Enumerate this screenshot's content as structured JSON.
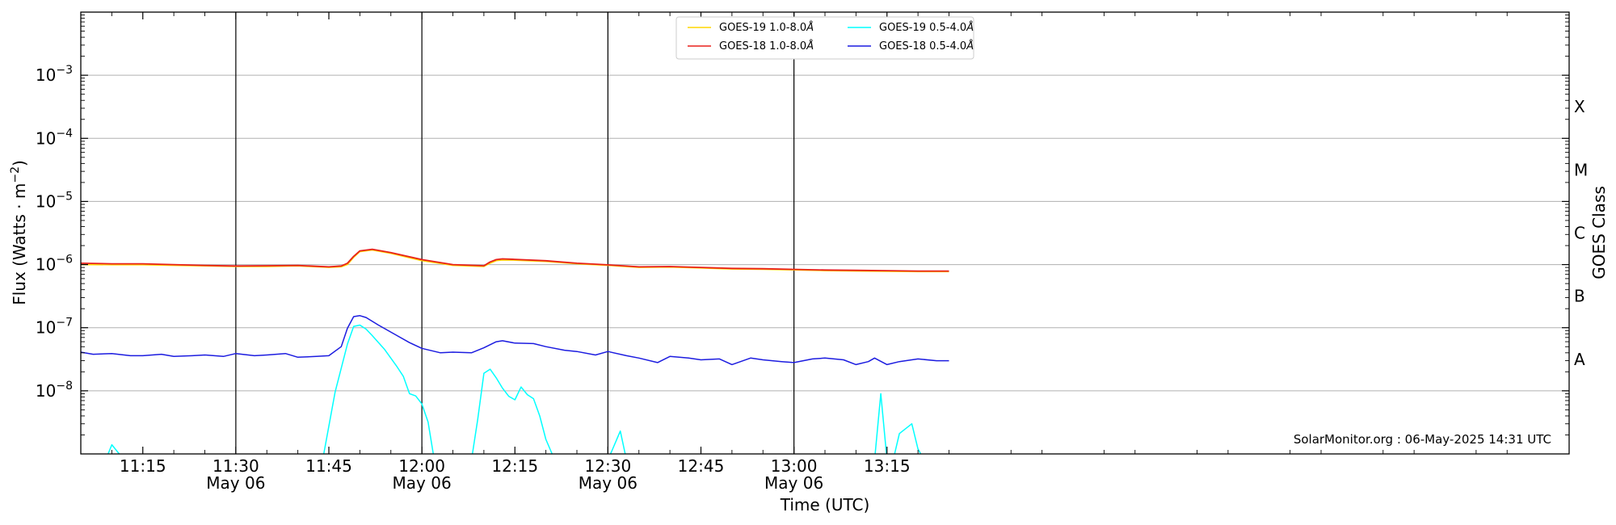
{
  "chart_data": {
    "type": "line",
    "xlabel": "Time (UTC)",
    "ylabel_main": "Flux (Watts · m",
    "ylabel_sup": "−2",
    "ylabel_close": ")",
    "right_label": "GOES Class",
    "watermark": "SolarMonitor.org : 06-May-2025 14:31 UTC",
    "scale": "log",
    "ylim": [
      1e-09,
      0.01
    ],
    "xlim_minutes": [
      65,
      305
    ],
    "x_origin_label": "10:00 UTC",
    "grid": "horizontal at decades",
    "legend_position": "top-center",
    "y_ticks": [
      {
        "value": 1e-08,
        "exp": "−8"
      },
      {
        "value": 1e-07,
        "exp": "−7"
      },
      {
        "value": 1e-06,
        "exp": "−6"
      },
      {
        "value": 1e-05,
        "exp": "−5"
      },
      {
        "value": 0.0001,
        "exp": "−4"
      },
      {
        "value": 0.001,
        "exp": "−3"
      }
    ],
    "x_ticks": [
      {
        "minute": 75,
        "label": "11:15",
        "sublabel": ""
      },
      {
        "minute": 90,
        "label": "11:30",
        "sublabel": "May 06"
      },
      {
        "minute": 105,
        "label": "11:45",
        "sublabel": ""
      },
      {
        "minute": 120,
        "label": "12:00",
        "sublabel": "May 06"
      },
      {
        "minute": 135,
        "label": "12:15",
        "sublabel": ""
      },
      {
        "minute": 150,
        "label": "12:30",
        "sublabel": "May 06"
      },
      {
        "minute": 165,
        "label": "12:45",
        "sublabel": ""
      },
      {
        "minute": 180,
        "label": "13:00",
        "sublabel": "May 06"
      },
      {
        "minute": 195,
        "label": "13:15",
        "sublabel": ""
      }
    ],
    "vlines_minutes": [
      90,
      120,
      150,
      180
    ],
    "goes_classes": [
      {
        "label": "X",
        "value": 0.000316
      },
      {
        "label": "M",
        "value": 3.16e-05
      },
      {
        "label": "C",
        "value": 3.16e-06
      },
      {
        "label": "B",
        "value": 3.16e-07
      },
      {
        "label": "A",
        "value": 3.16e-08
      }
    ],
    "series": [
      {
        "name": "GOES-19 1.0-8.0",
        "color": "#ffd700",
        "x": [
          65,
          70,
          75,
          80,
          85,
          90,
          95,
          100,
          103,
          105,
          107,
          108,
          109,
          110,
          112,
          115,
          120,
          125,
          130,
          131,
          132,
          133,
          135,
          140,
          145,
          150,
          155,
          160,
          165,
          170,
          175,
          180,
          185,
          190,
          195,
          200,
          205
        ],
        "y": [
          1e-06,
          9.9e-07,
          9.9e-07,
          9.7e-07,
          9.5e-07,
          9.3e-07,
          9.3e-07,
          9.5e-07,
          9.2e-07,
          9e-07,
          9.2e-07,
          1e-06,
          1.3e-06,
          1.6e-06,
          1.7e-06,
          1.5e-06,
          1.15e-06,
          9.7e-07,
          9.3e-07,
          1.05e-06,
          1.15e-06,
          1.18e-06,
          1.17e-06,
          1.12e-06,
          1.03e-06,
          9.7e-07,
          9e-07,
          9.1e-07,
          8.8e-07,
          8.5e-07,
          8.4e-07,
          8.2e-07,
          8e-07,
          7.9e-07,
          7.8e-07,
          7.7e-07,
          7.7e-07
        ]
      },
      {
        "name": "GOES-18 1.0-8.0",
        "color": "#e8211b",
        "x": [
          65,
          70,
          75,
          80,
          85,
          90,
          95,
          100,
          103,
          105,
          107,
          108,
          109,
          110,
          112,
          115,
          120,
          125,
          130,
          131,
          132,
          133,
          135,
          140,
          145,
          150,
          155,
          160,
          165,
          170,
          175,
          180,
          185,
          190,
          195,
          200,
          205
        ],
        "y": [
          1.05e-06,
          1.03e-06,
          1.03e-06,
          1e-06,
          9.7e-07,
          9.5e-07,
          9.6e-07,
          9.7e-07,
          9.4e-07,
          9.2e-07,
          9.5e-07,
          1.05e-06,
          1.35e-06,
          1.65e-06,
          1.75e-06,
          1.55e-06,
          1.2e-06,
          1e-06,
          9.6e-07,
          1.1e-06,
          1.2e-06,
          1.23e-06,
          1.21e-06,
          1.15e-06,
          1.05e-06,
          9.9e-07,
          9.2e-07,
          9.3e-07,
          9e-07,
          8.7e-07,
          8.6e-07,
          8.4e-07,
          8.2e-07,
          8.1e-07,
          8e-07,
          7.9e-07,
          7.9e-07
        ]
      },
      {
        "name": "GOES-19 0.5-4.0",
        "color": "#00ffff",
        "x": [
          65,
          69,
          70,
          72,
          73,
          104,
          106,
          108,
          109,
          110,
          111,
          112,
          114,
          116,
          117,
          118,
          119,
          120,
          121,
          122,
          124,
          128,
          129,
          130,
          131,
          132,
          133,
          134,
          135,
          136,
          137,
          138,
          139,
          140,
          141,
          142,
          150,
          152,
          153,
          154,
          193,
          194,
          195,
          196,
          197,
          199,
          200,
          201,
          202,
          205
        ],
        "y": [
          8e-10,
          8e-10,
          1.4e-09,
          8e-10,
          8e-10,
          8e-10,
          9.5e-09,
          5.5e-08,
          1.05e-07,
          1.1e-07,
          9.5e-08,
          7.5e-08,
          4.5e-08,
          2.4e-08,
          1.7e-08,
          9e-09,
          8.3e-09,
          6.2e-09,
          3.2e-09,
          8e-10,
          8e-10,
          8e-10,
          3.5e-09,
          1.9e-08,
          2.2e-08,
          1.6e-08,
          1.1e-08,
          8.2e-09,
          7.2e-09,
          1.15e-08,
          8.7e-09,
          7.5e-09,
          4e-09,
          1.7e-09,
          1e-09,
          8e-10,
          8e-10,
          2.3e-09,
          8e-10,
          8e-10,
          8e-10,
          9e-09,
          8e-10,
          8e-10,
          2.1e-09,
          3e-09,
          1.2e-09,
          8e-10,
          8e-10,
          8e-10
        ]
      },
      {
        "name": "GOES-18 0.5-4.0",
        "color": "#1c1ce0",
        "x": [
          65,
          67,
          70,
          73,
          75,
          78,
          80,
          83,
          85,
          88,
          90,
          93,
          95,
          98,
          100,
          103,
          105,
          107,
          108,
          109,
          110,
          111,
          113,
          116,
          118,
          120,
          123,
          125,
          128,
          130,
          132,
          133,
          135,
          138,
          140,
          143,
          145,
          148,
          150,
          153,
          155,
          158,
          160,
          163,
          165,
          168,
          170,
          173,
          175,
          178,
          180,
          183,
          185,
          188,
          190,
          192,
          193,
          195,
          197,
          200,
          203,
          205
        ],
        "y": [
          4.1e-08,
          3.8e-08,
          3.9e-08,
          3.6e-08,
          3.6e-08,
          3.8e-08,
          3.5e-08,
          3.6e-08,
          3.7e-08,
          3.5e-08,
          3.9e-08,
          3.6e-08,
          3.7e-08,
          3.9e-08,
          3.4e-08,
          3.5e-08,
          3.6e-08,
          5e-08,
          9.8e-08,
          1.5e-07,
          1.55e-07,
          1.45e-07,
          1.1e-07,
          7.5e-08,
          5.8e-08,
          4.7e-08,
          4e-08,
          4.1e-08,
          4e-08,
          4.8e-08,
          6e-08,
          6.2e-08,
          5.7e-08,
          5.6e-08,
          5e-08,
          4.4e-08,
          4.2e-08,
          3.7e-08,
          4.2e-08,
          3.6e-08,
          3.3e-08,
          2.8e-08,
          3.5e-08,
          3.3e-08,
          3.1e-08,
          3.2e-08,
          2.6e-08,
          3.3e-08,
          3.1e-08,
          2.9e-08,
          2.8e-08,
          3.2e-08,
          3.3e-08,
          3.1e-08,
          2.6e-08,
          2.9e-08,
          3.3e-08,
          2.6e-08,
          2.9e-08,
          3.2e-08,
          3e-08,
          3e-08
        ]
      }
    ],
    "legend": [
      {
        "label": "GOES-19 1.0-8.0",
        "color": "#ffd700"
      },
      {
        "label": "GOES-19 0.5-4.0",
        "color": "#00ffff"
      },
      {
        "label": "GOES-18 1.0-8.0",
        "color": "#e8211b"
      },
      {
        "label": "GOES-18 0.5-4.0",
        "color": "#1c1ce0"
      }
    ],
    "angstrom": "Å"
  }
}
